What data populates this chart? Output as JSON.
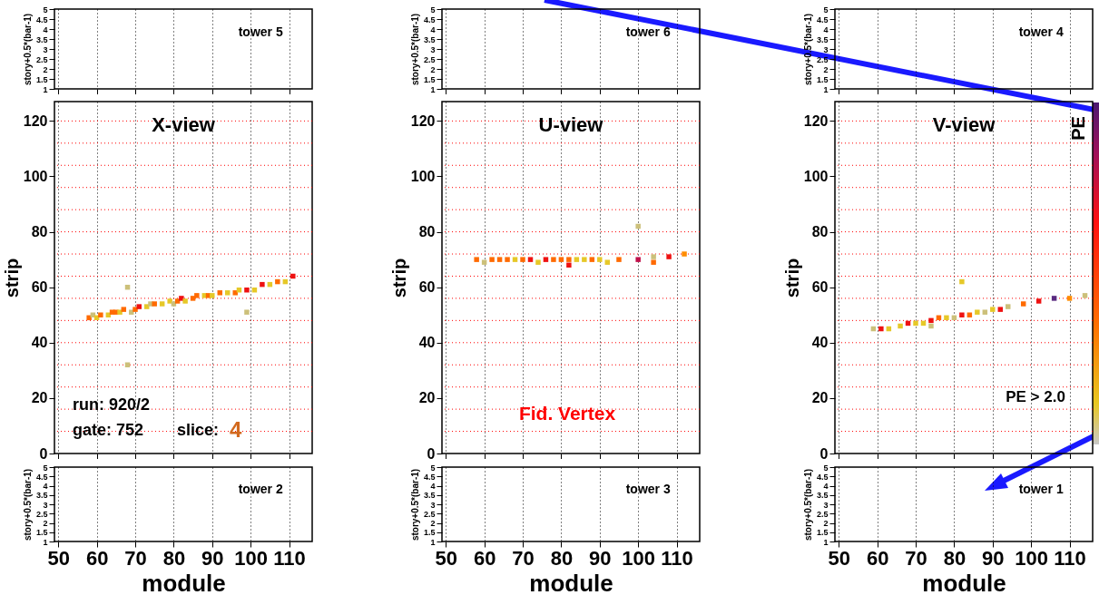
{
  "chart_data": [
    {
      "type": "scatter",
      "ylabel": "story+0.5*(bar-1)",
      "xlim": [
        49,
        116
      ],
      "ylim": [
        1,
        5
      ],
      "xticks": [
        50,
        60,
        70,
        80,
        90,
        100,
        110
      ],
      "yticks": [
        1,
        1.5,
        2,
        2.5,
        3,
        3.5,
        4,
        4.5,
        5
      ],
      "grid": "x",
      "tick_labels": "y",
      "annotations": [
        "tower  5"
      ]
    },
    {
      "type": "scatter",
      "ylabel": "story+0.5*(bar-1)",
      "xlim": [
        49,
        116
      ],
      "ylim": [
        1,
        5
      ],
      "xticks": [
        50,
        60,
        70,
        80,
        90,
        100,
        110
      ],
      "yticks": [
        1,
        1.5,
        2,
        2.5,
        3,
        3.5,
        4,
        4.5,
        5
      ],
      "grid": "x",
      "tick_labels": "y",
      "annotations": [
        "tower  6"
      ]
    },
    {
      "type": "scatter",
      "ylabel": "story+0.5*(bar-1)",
      "xlim": [
        49,
        116
      ],
      "ylim": [
        1,
        5
      ],
      "xticks": [
        50,
        60,
        70,
        80,
        90,
        100,
        110
      ],
      "yticks": [
        1,
        1.5,
        2,
        2.5,
        3,
        3.5,
        4,
        4.5,
        5
      ],
      "grid": "x",
      "tick_labels": "y",
      "annotations": [
        "tower  4"
      ]
    },
    {
      "type": "scatter",
      "title": "X-view",
      "ylabel": "strip",
      "xlim": [
        49,
        116
      ],
      "ylim": [
        0,
        127
      ],
      "xticks": [
        50,
        60,
        70,
        80,
        90,
        100,
        110
      ],
      "yticks": [
        0,
        20,
        40,
        60,
        80,
        100,
        120
      ],
      "grid": "x",
      "tick_labels": "y",
      "marker": "square",
      "x": [
        58,
        59,
        60,
        61,
        63,
        64,
        65,
        66,
        67,
        68,
        68,
        69,
        70,
        71,
        73,
        74,
        75,
        77,
        79,
        80,
        81,
        82,
        83,
        85,
        86,
        88,
        89,
        90,
        92,
        94,
        96,
        97,
        99,
        99,
        101,
        103,
        105,
        107,
        109,
        111
      ],
      "values": [
        49,
        50,
        49,
        50,
        50,
        51,
        51,
        51,
        52,
        60,
        32,
        51,
        52,
        53,
        53,
        54,
        54,
        54,
        55,
        54,
        55,
        56,
        55,
        56,
        57,
        57,
        57,
        57,
        58,
        58,
        58,
        59,
        59,
        51,
        59,
        61,
        61,
        62,
        62,
        64
      ],
      "colors": [
        "#ff6a00",
        "#ccc07a",
        "#e6c828",
        "#ff6a00",
        "#e6c828",
        "#ff6a00",
        "#ff6a00",
        "#e6c828",
        "#ff6a00",
        "#ccc07a",
        "#ccc07a",
        "#ccc07a",
        "#ff6a00",
        "#ee1111",
        "#e6c828",
        "#ccc07a",
        "#ff6a00",
        "#e6c828",
        "#e6c828",
        "#ccc07a",
        "#ff6a00",
        "#ee1111",
        "#e6c828",
        "#ff6a00",
        "#ff6a00",
        "#e6c828",
        "#ff6a00",
        "#e6c828",
        "#ff6a00",
        "#e6c828",
        "#ff6a00",
        "#e6c828",
        "#ee1111",
        "#ccc07a",
        "#e6c828",
        "#ee1111",
        "#e6c828",
        "#ff6a00",
        "#e6c828",
        "#ee1111"
      ],
      "ref_lines": [
        {
          "axis": "y",
          "value": 8,
          "color": "#ff0000",
          "line_style": "dotted"
        },
        {
          "axis": "y",
          "value": 16,
          "color": "#ff0000",
          "line_style": "dotted"
        },
        {
          "axis": "y",
          "value": 24,
          "color": "#ff0000",
          "line_style": "dotted"
        },
        {
          "axis": "y",
          "value": 32,
          "color": "#ff0000",
          "line_style": "dotted"
        },
        {
          "axis": "y",
          "value": 40,
          "color": "#ff0000",
          "line_style": "dotted"
        },
        {
          "axis": "y",
          "value": 48,
          "color": "#ff0000",
          "line_style": "dotted"
        },
        {
          "axis": "y",
          "value": 56,
          "color": "#ff0000",
          "line_style": "dotted"
        },
        {
          "axis": "y",
          "value": 64,
          "color": "#ff0000",
          "line_style": "dotted"
        },
        {
          "axis": "y",
          "value": 72,
          "color": "#ff0000",
          "line_style": "dotted"
        },
        {
          "axis": "y",
          "value": 80,
          "color": "#ff0000",
          "line_style": "dotted"
        },
        {
          "axis": "y",
          "value": 88,
          "color": "#ff0000",
          "line_style": "dotted"
        },
        {
          "axis": "y",
          "value": 96,
          "color": "#ff0000",
          "line_style": "dotted"
        },
        {
          "axis": "y",
          "value": 104,
          "color": "#ff0000",
          "line_style": "dotted"
        },
        {
          "axis": "y",
          "value": 112,
          "color": "#ff0000",
          "line_style": "dotted"
        },
        {
          "axis": "y",
          "value": 120,
          "color": "#ff0000",
          "line_style": "dotted"
        }
      ],
      "annotations": [
        "run: 920/2",
        "gate: 752",
        "slice:",
        "4"
      ]
    },
    {
      "type": "scatter",
      "title": "U-view",
      "ylabel": "strip",
      "xlim": [
        49,
        116
      ],
      "ylim": [
        0,
        127
      ],
      "xticks": [
        50,
        60,
        70,
        80,
        90,
        100,
        110
      ],
      "yticks": [
        0,
        20,
        40,
        60,
        80,
        100,
        120
      ],
      "grid": "x",
      "tick_labels": "y",
      "marker": "square",
      "x": [
        58,
        60,
        62,
        64,
        66,
        68,
        70,
        72,
        74,
        76,
        78,
        80,
        82,
        84,
        86,
        88,
        90,
        92,
        95,
        100,
        104,
        108,
        112,
        82,
        100,
        104
      ],
      "values": [
        70,
        69,
        70,
        70,
        70,
        70,
        70,
        70,
        69,
        70,
        70,
        70,
        70,
        70,
        70,
        70,
        70,
        69,
        70,
        70,
        69,
        71,
        72,
        68,
        82,
        71
      ],
      "colors": [
        "#ff6a00",
        "#ccc07a",
        "#ff6a00",
        "#ff6a00",
        "#ff6a00",
        "#e6c828",
        "#ff6a00",
        "#ee1111",
        "#e6c828",
        "#ee1111",
        "#ff6a00",
        "#ff6a00",
        "#ff6a00",
        "#e6c828",
        "#e6c828",
        "#ff6a00",
        "#e6c828",
        "#e6c828",
        "#ff6a00",
        "#c0104a",
        "#ff6a00",
        "#ee1111",
        "#ff8c00",
        "#ee1111",
        "#ccc07a",
        "#ccc07a"
      ],
      "ref_lines": [
        {
          "axis": "y",
          "value": 8,
          "color": "#ff0000",
          "line_style": "dotted"
        },
        {
          "axis": "y",
          "value": 16,
          "color": "#ff0000",
          "line_style": "dotted"
        },
        {
          "axis": "y",
          "value": 24,
          "color": "#ff0000",
          "line_style": "dotted"
        },
        {
          "axis": "y",
          "value": 32,
          "color": "#ff0000",
          "line_style": "dotted"
        },
        {
          "axis": "y",
          "value": 40,
          "color": "#ff0000",
          "line_style": "dotted"
        },
        {
          "axis": "y",
          "value": 48,
          "color": "#ff0000",
          "line_style": "dotted"
        },
        {
          "axis": "y",
          "value": 56,
          "color": "#ff0000",
          "line_style": "dotted"
        },
        {
          "axis": "y",
          "value": 64,
          "color": "#ff0000",
          "line_style": "dotted"
        },
        {
          "axis": "y",
          "value": 72,
          "color": "#ff0000",
          "line_style": "dotted"
        },
        {
          "axis": "y",
          "value": 80,
          "color": "#ff0000",
          "line_style": "dotted"
        },
        {
          "axis": "y",
          "value": 88,
          "color": "#ff0000",
          "line_style": "dotted"
        },
        {
          "axis": "y",
          "value": 96,
          "color": "#ff0000",
          "line_style": "dotted"
        },
        {
          "axis": "y",
          "value": 104,
          "color": "#ff0000",
          "line_style": "dotted"
        },
        {
          "axis": "y",
          "value": 112,
          "color": "#ff0000",
          "line_style": "dotted"
        },
        {
          "axis": "y",
          "value": 120,
          "color": "#ff0000",
          "line_style": "dotted"
        }
      ],
      "annotations": [
        "Fid. Vertex"
      ]
    },
    {
      "type": "scatter",
      "title": "V-view",
      "ylabel": "strip",
      "clabel": "PE",
      "xlim": [
        49,
        116
      ],
      "ylim": [
        0,
        127
      ],
      "xticks": [
        50,
        60,
        70,
        80,
        90,
        100,
        110
      ],
      "yticks": [
        0,
        20,
        40,
        60,
        80,
        100,
        120
      ],
      "grid": "x",
      "tick_labels": "y",
      "marker": "square",
      "x": [
        59,
        61,
        63,
        66,
        68,
        70,
        72,
        74,
        74,
        76,
        78,
        80,
        82,
        82,
        84,
        86,
        88,
        90,
        92,
        94,
        98,
        102,
        106,
        110,
        114
      ],
      "values": [
        45,
        45,
        45,
        46,
        47,
        47,
        47,
        48,
        46,
        49,
        49,
        49,
        62,
        50,
        50,
        51,
        51,
        52,
        52,
        53,
        54,
        55,
        56,
        56,
        57
      ],
      "colors": [
        "#ccc07a",
        "#ee1111",
        "#e6c828",
        "#e6c828",
        "#ee1111",
        "#e6c828",
        "#e6c828",
        "#ee1111",
        "#ccc07a",
        "#ff6a00",
        "#e6c828",
        "#ccc07a",
        "#e6c828",
        "#ee1111",
        "#ff6a00",
        "#e6c828",
        "#ccc07a",
        "#e6c828",
        "#ee1111",
        "#ccc07a",
        "#ff6a00",
        "#ee1111",
        "#5a2a80",
        "#ff8c00",
        "#ccc07a"
      ],
      "ref_lines": [
        {
          "axis": "y",
          "value": 8,
          "color": "#ff0000",
          "line_style": "dotted"
        },
        {
          "axis": "y",
          "value": 16,
          "color": "#ff0000",
          "line_style": "dotted"
        },
        {
          "axis": "y",
          "value": 24,
          "color": "#ff0000",
          "line_style": "dotted"
        },
        {
          "axis": "y",
          "value": 32,
          "color": "#ff0000",
          "line_style": "dotted"
        },
        {
          "axis": "y",
          "value": 40,
          "color": "#ff0000",
          "line_style": "dotted"
        },
        {
          "axis": "y",
          "value": 48,
          "color": "#ff0000",
          "line_style": "dotted"
        },
        {
          "axis": "y",
          "value": 56,
          "color": "#ff0000",
          "line_style": "dotted"
        },
        {
          "axis": "y",
          "value": 64,
          "color": "#ff0000",
          "line_style": "dotted"
        },
        {
          "axis": "y",
          "value": 72,
          "color": "#ff0000",
          "line_style": "dotted"
        },
        {
          "axis": "y",
          "value": 80,
          "color": "#ff0000",
          "line_style": "dotted"
        },
        {
          "axis": "y",
          "value": 88,
          "color": "#ff0000",
          "line_style": "dotted"
        },
        {
          "axis": "y",
          "value": 96,
          "color": "#ff0000",
          "line_style": "dotted"
        },
        {
          "axis": "y",
          "value": 104,
          "color": "#ff0000",
          "line_style": "dotted"
        },
        {
          "axis": "y",
          "value": 112,
          "color": "#ff0000",
          "line_style": "dotted"
        },
        {
          "axis": "y",
          "value": 120,
          "color": "#ff0000",
          "line_style": "dotted"
        }
      ],
      "annotations": [
        "PE > 2.0"
      ]
    },
    {
      "type": "scatter",
      "xlabel": "module",
      "ylabel": "story+0.5*(bar-1)",
      "xlim": [
        49,
        116
      ],
      "ylim": [
        1,
        5
      ],
      "xticks": [
        50,
        60,
        70,
        80,
        90,
        100,
        110
      ],
      "yticks": [
        1,
        1.5,
        2,
        2.5,
        3,
        3.5,
        4,
        4.5,
        5
      ],
      "grid": "x",
      "annotations": [
        "tower  2"
      ]
    },
    {
      "type": "scatter",
      "xlabel": "module",
      "ylabel": "story+0.5*(bar-1)",
      "xlim": [
        49,
        116
      ],
      "ylim": [
        1,
        5
      ],
      "xticks": [
        50,
        60,
        70,
        80,
        90,
        100,
        110
      ],
      "yticks": [
        1,
        1.5,
        2,
        2.5,
        3,
        3.5,
        4,
        4.5,
        5
      ],
      "grid": "x",
      "annotations": [
        "tower  3"
      ]
    },
    {
      "type": "scatter",
      "xlabel": "module",
      "ylabel": "story+0.5*(bar-1)",
      "xlim": [
        49,
        116
      ],
      "ylim": [
        1,
        5
      ],
      "xticks": [
        50,
        60,
        70,
        80,
        90,
        100,
        110
      ],
      "yticks": [
        1,
        1.5,
        2,
        2.5,
        3,
        3.5,
        4,
        4.5,
        5
      ],
      "grid": "x",
      "annotations": [
        "tower  1"
      ]
    }
  ]
}
